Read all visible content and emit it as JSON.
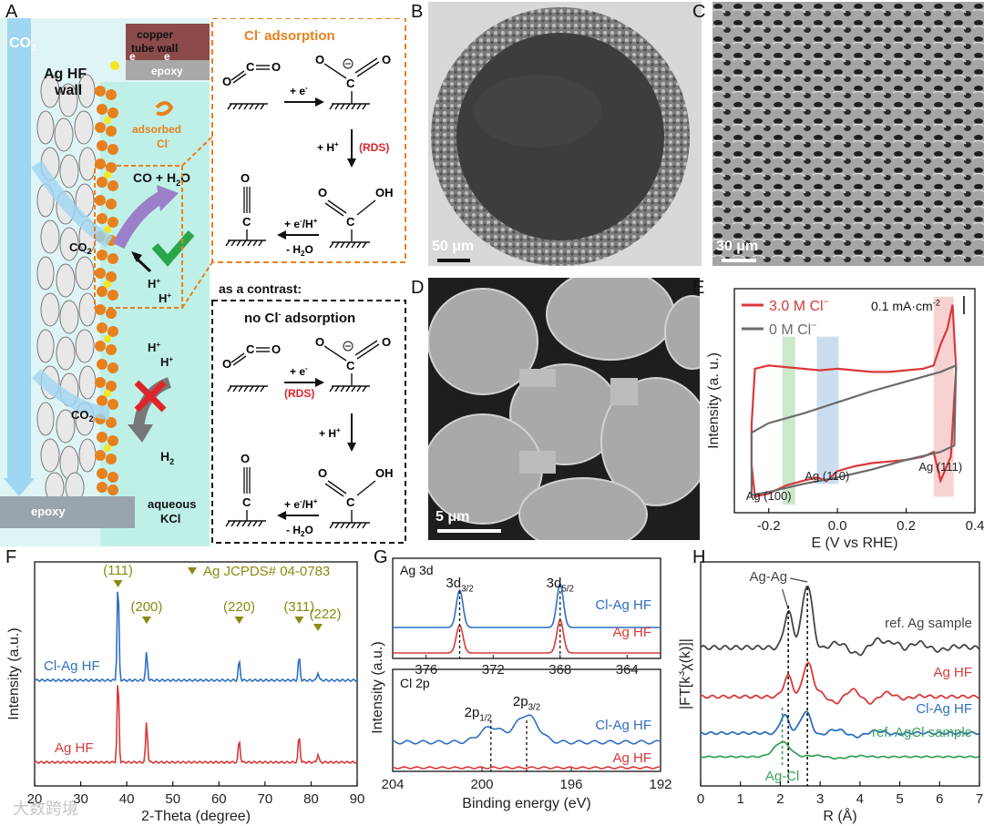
{
  "panels": {
    "A": {
      "letter": "A",
      "co2": "CO",
      "co2_sub": "2",
      "copper_wall": [
        "copper",
        "tube wall"
      ],
      "electron": "e",
      "epoxy_top": "epoxy",
      "ag_hf_wall": [
        "Ag HF",
        "wall"
      ],
      "adsorbed": [
        "adsorbed",
        "Cl"
      ],
      "product": "CO + H",
      "product_sub": "2",
      "product_tail": "O",
      "hplus": "H",
      "h2": "H",
      "h2_sub": "2",
      "aqueous": [
        "aqueous",
        "KCl"
      ],
      "epoxy_bottom": "epoxy",
      "scheme_top_title": "Cl",
      "scheme_top_title_tail": " adsorption",
      "contrast_label": "as a contrast:",
      "scheme_bottom_title": "no Cl",
      "scheme_bottom_title_tail": " adsorption",
      "step_e": "+ e",
      "step_h": "+ H",
      "rds": "(RDS)",
      "step_eh": "+ e",
      "step_eh_tail": "/H",
      "step_h2o": "- H",
      "step_h2o_sub": "2",
      "step_h2o_tail": "O",
      "atom_O": "O",
      "atom_C": "C",
      "atom_OH": "OH"
    },
    "B": {
      "letter": "B",
      "scale": "50 μm"
    },
    "C": {
      "letter": "C",
      "scale": "30 μm"
    },
    "D": {
      "letter": "D",
      "scale": "5 μm"
    },
    "E": {
      "letter": "E"
    },
    "F": {
      "letter": "F"
    },
    "G": {
      "letter": "G"
    },
    "H": {
      "letter": "H"
    }
  },
  "watermark": "大数跨境",
  "chart_data": [
    {
      "id": "E",
      "type": "line",
      "xlabel": "E (V vs RHE)",
      "ylabel": "Intensity (a. u.)",
      "xlim": [
        -0.3,
        0.4
      ],
      "xticks": [
        "-0.2",
        "0.0",
        "0.2",
        "0.4"
      ],
      "scale_label": "0.1 mA·cm",
      "scale_sup": "-2",
      "legend": [
        {
          "name": "3.0 M Cl",
          "color": "#d9383a"
        },
        {
          "name": "0    M Cl",
          "color": "#6b6b6b"
        }
      ],
      "annotations": [
        "Ag (100)",
        "Ag (110)",
        "Ag (111)"
      ],
      "series": [
        {
          "name": "3.0 M Cl",
          "color": "#d9383a",
          "upper": [
            [
              -0.25,
              0.55
            ],
            [
              -0.24,
              0.9
            ],
            [
              -0.2,
              0.92
            ],
            [
              -0.15,
              0.91
            ],
            [
              -0.1,
              0.9
            ],
            [
              -0.05,
              0.89
            ],
            [
              0.0,
              0.9
            ],
            [
              0.05,
              0.89
            ],
            [
              0.1,
              0.88
            ],
            [
              0.15,
              0.88
            ],
            [
              0.2,
              0.89
            ],
            [
              0.25,
              0.9
            ],
            [
              0.28,
              0.92
            ],
            [
              0.3,
              1.05
            ],
            [
              0.32,
              1.15
            ],
            [
              0.335,
              1.3
            ],
            [
              0.345,
              0.9
            ]
          ],
          "lower": [
            [
              0.345,
              0.9
            ],
            [
              0.33,
              0.35
            ],
            [
              0.31,
              0.25
            ],
            [
              0.3,
              0.2
            ],
            [
              0.28,
              0.38
            ],
            [
              0.25,
              0.35
            ],
            [
              0.2,
              0.33
            ],
            [
              0.15,
              0.32
            ],
            [
              0.1,
              0.31
            ],
            [
              0.05,
              0.29
            ],
            [
              0.0,
              0.26
            ],
            [
              -0.03,
              0.2
            ],
            [
              -0.06,
              0.22
            ],
            [
              -0.1,
              0.2
            ],
            [
              -0.15,
              0.17
            ],
            [
              -0.2,
              0.12
            ],
            [
              -0.24,
              0.1
            ],
            [
              -0.25,
              0.3
            ],
            [
              -0.25,
              0.55
            ]
          ]
        },
        {
          "name": "0 M Cl",
          "color": "#6b6b6b",
          "upper": [
            [
              -0.25,
              0.5
            ],
            [
              -0.2,
              0.56
            ],
            [
              -0.1,
              0.62
            ],
            [
              0.0,
              0.69
            ],
            [
              0.1,
              0.76
            ],
            [
              0.2,
              0.82
            ],
            [
              0.3,
              0.88
            ],
            [
              0.345,
              0.92
            ]
          ],
          "lower": [
            [
              0.345,
              0.92
            ],
            [
              0.34,
              0.42
            ],
            [
              0.3,
              0.38
            ],
            [
              0.2,
              0.33
            ],
            [
              0.1,
              0.27
            ],
            [
              0.0,
              0.22
            ],
            [
              -0.1,
              0.18
            ],
            [
              -0.2,
              0.13
            ],
            [
              -0.25,
              0.11
            ],
            [
              -0.25,
              0.5
            ]
          ]
        }
      ]
    },
    {
      "id": "F",
      "type": "line",
      "xlabel": "2-Theta (degree)",
      "ylabel": "Intensity (a.u.)",
      "xlim": [
        20,
        90
      ],
      "xticks": [
        "20",
        "30",
        "40",
        "50",
        "60",
        "70",
        "80",
        "90"
      ],
      "legend_text": "Ag  JCPDS# 04-0783",
      "peak_labels": [
        {
          "label": "(111)",
          "x": 38.1
        },
        {
          "label": "(200)",
          "x": 44.3
        },
        {
          "label": "(220)",
          "x": 64.4
        },
        {
          "label": "(311)",
          "x": 77.4
        },
        {
          "label": "(222)",
          "x": 81.5
        }
      ],
      "series": [
        {
          "name": "Cl-Ag HF",
          "color": "#2f6fc0",
          "peaks": [
            [
              38.1,
              1.0
            ],
            [
              44.3,
              0.28
            ],
            [
              64.4,
              0.2
            ],
            [
              77.4,
              0.24
            ],
            [
              81.5,
              0.08
            ]
          ]
        },
        {
          "name": "Ag HF",
          "color": "#d9383a",
          "peaks": [
            [
              38.1,
              0.95
            ],
            [
              44.3,
              0.45
            ],
            [
              64.4,
              0.25
            ],
            [
              77.4,
              0.3
            ],
            [
              81.5,
              0.09
            ]
          ]
        }
      ]
    },
    {
      "id": "G",
      "type": "line",
      "xlabel": "Binding energy (eV)",
      "ylabel": "Intensity (a.u.)",
      "top_title": "Ag 3d",
      "bottom_title": "Cl 2p",
      "top_xticks": [
        "376",
        "372",
        "368",
        "364"
      ],
      "bottom_xticks": [
        "204",
        "200",
        "196",
        "192"
      ],
      "top_peaks": [
        {
          "label": "3d",
          "sub": "3/2",
          "x": 374.0
        },
        {
          "label": "3d",
          "sub": "5/2",
          "x": 368.0
        }
      ],
      "bottom_peaks": [
        {
          "label": "2p",
          "sub": "1/2",
          "x": 199.6
        },
        {
          "label": "2p",
          "sub": "3/2",
          "x": 198.0
        }
      ],
      "series": [
        {
          "name": "Cl-Ag HF",
          "color": "#2f6fc0"
        },
        {
          "name": "Ag HF",
          "color": "#d9383a"
        }
      ]
    },
    {
      "id": "H",
      "type": "line",
      "xlabel": "R (Å)",
      "ylabel": "|FT[k",
      "ylabel_sup": "3",
      "ylabel_tail": "χ(k)]|",
      "xlim": [
        0,
        7
      ],
      "xticks": [
        "0",
        "1",
        "2",
        "3",
        "4",
        "5",
        "6",
        "7"
      ],
      "annotations": [
        "Ag-Ag",
        "Ag-Cl"
      ],
      "series": [
        {
          "name": "ref. Ag sample",
          "color": "#444444"
        },
        {
          "name": "Ag HF",
          "color": "#d9383a"
        },
        {
          "name": "Cl-Ag HF",
          "color": "#2f6fc0"
        },
        {
          "name": "ref. AgCl sample",
          "color": "#3aa35a"
        }
      ]
    }
  ]
}
